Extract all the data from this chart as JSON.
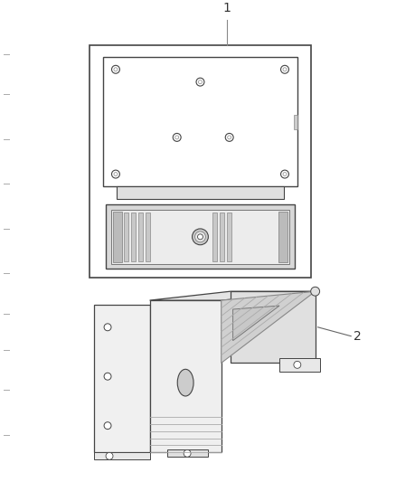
{
  "bg_color": "#ffffff",
  "line_color": "#444444",
  "part1_label": "1",
  "part2_label": "2",
  "border_color": "#444444",
  "tick_color": "#999999",
  "figsize": [
    4.38,
    5.33
  ],
  "dpi": 100
}
